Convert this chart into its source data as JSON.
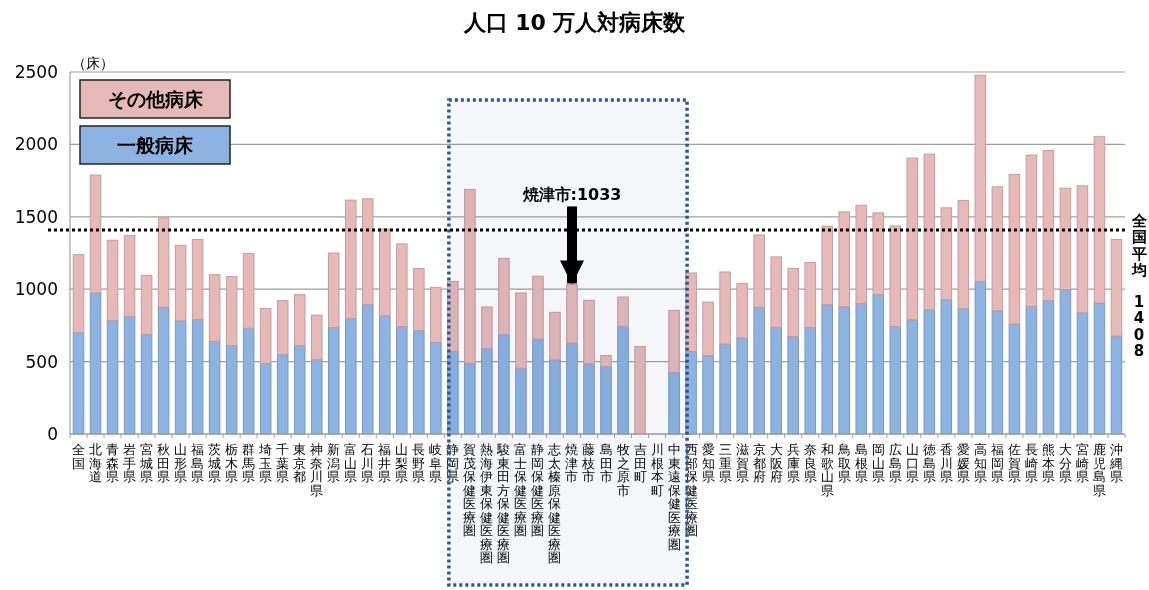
{
  "chart_data": {
    "type": "bar",
    "title": "人口 10 万人対病床数",
    "ylabel": "（床）",
    "categories": [
      "全国",
      "北海道",
      "青森県",
      "岩手県",
      "宮城県",
      "秋田県",
      "山形県",
      "福島県",
      "茨城県",
      "栃木県",
      "群馬県",
      "埼玉県",
      "千葉県",
      "東京都",
      "神奈川県",
      "新潟県",
      "富山県",
      "石川県",
      "福井県",
      "山梨県",
      "長野県",
      "岐阜県",
      "静岡県",
      "賀茂保健医療圏",
      "熱海伊東保健医療圏",
      "駿東田方保健医療圏",
      "富士保健医療圏",
      "静岡保健医療圏",
      "志太榛原保健医療圏",
      "焼津市",
      "藤枝市",
      "島田市",
      "牧之原市",
      "吉田町",
      "川根本町",
      "中東遠保健医療圏",
      "西部保健医療圏",
      "愛知県",
      "三重県",
      "滋賀県",
      "京都府",
      "大阪府",
      "兵庫県",
      "奈良県",
      "和歌山県",
      "鳥取県",
      "島根県",
      "岡山県",
      "広島県",
      "山口県",
      "徳島県",
      "香川県",
      "愛媛県",
      "高知県",
      "福岡県",
      "佐賀県",
      "長崎県",
      "熊本県",
      "大分県",
      "宮崎県",
      "鹿児島県",
      "沖縄県"
    ],
    "stacked": true,
    "series": [
      {
        "name": "一般病床",
        "color": "#8db3e2",
        "values": [
          701,
          974,
          782,
          812,
          687,
          874,
          782,
          791,
          641,
          611,
          731,
          487,
          549,
          611,
          514,
          736,
          798,
          895,
          817,
          743,
          713,
          632,
          570,
          489,
          590,
          687,
          454,
          655,
          512,
          627,
          484,
          466,
          743,
          0,
          null,
          424,
          570,
          540,
          621,
          664,
          874,
          736,
          673,
          736,
          893,
          879,
          902,
          964,
          743,
          789,
          858,
          927,
          867,
          1054,
          851,
          759,
          881,
          922,
          997,
          837,
          904,
          676
        ]
      },
      {
        "name": "その他病床",
        "color": "#e6b9b8",
        "values": [
          538,
          814,
          556,
          558,
          409,
          619,
          521,
          552,
          459,
          476,
          515,
          380,
          372,
          351,
          307,
          514,
          817,
          729,
          599,
          570,
          429,
          381,
          484,
          1200,
          287,
          526,
          520,
          434,
          328,
          406,
          439,
          76,
          203,
          604,
          null,
          430,
          542,
          371,
          498,
          376,
          501,
          487,
          471,
          449,
          542,
          655,
          678,
          563,
          694,
          1116,
          1075,
          635,
          745,
          1424,
          856,
          1033,
          1045,
          1036,
          701,
          877,
          1149,
          667
        ]
      }
    ],
    "ylim": [
      0,
      2500
    ],
    "yticks": [
      0,
      500,
      1000,
      1500,
      2000,
      2500
    ],
    "grid": "y",
    "legend": "left",
    "ref_lines": [
      {
        "axis": "y",
        "value": 1408,
        "label": "全国平均　1408",
        "line_style": "dotted",
        "color": "#000000"
      }
    ],
    "bands": [
      {
        "axis": "x",
        "from": "静岡県",
        "to": "西部保健医療圏",
        "color": "#2f5597"
      }
    ],
    "annotations": [
      {
        "text": "焼津市:1033",
        "x": "焼津市",
        "y": 1033
      }
    ]
  }
}
